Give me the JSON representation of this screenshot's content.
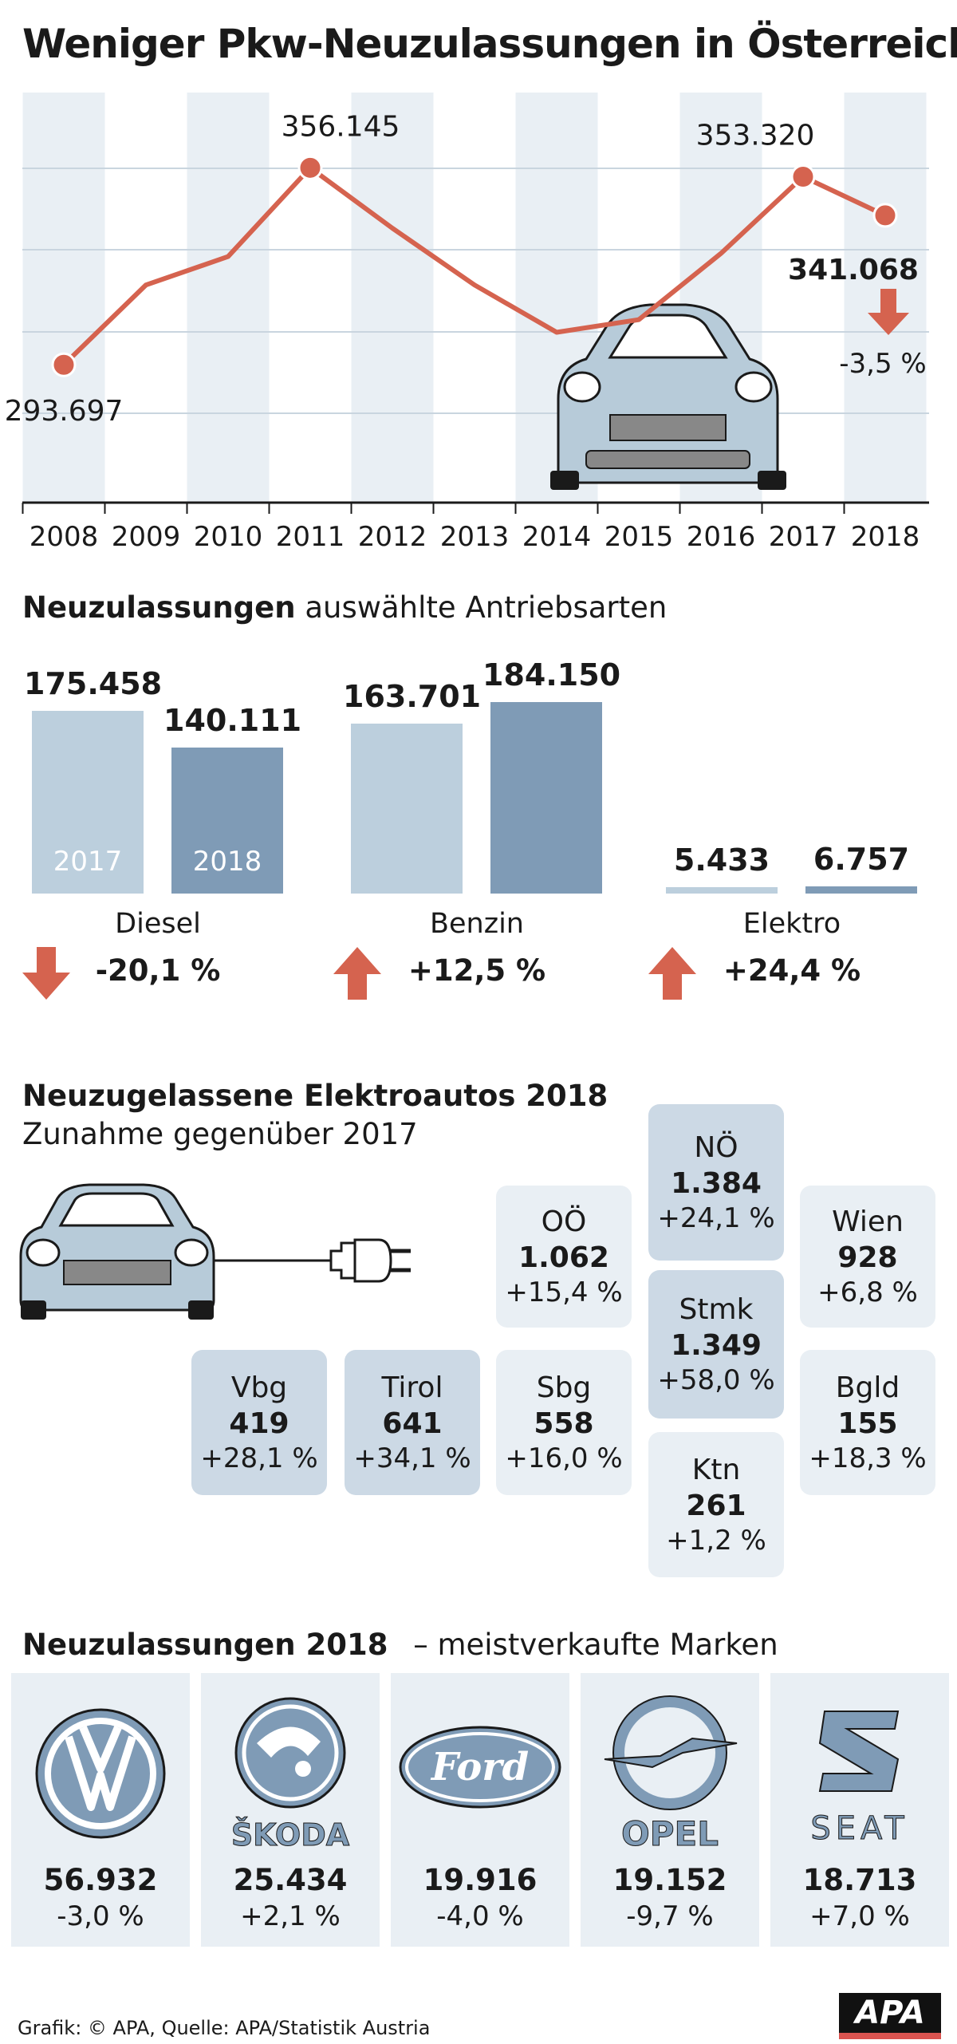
{
  "title": "Weniger Pkw-Neuzulassungen in Österreich",
  "colors": {
    "line": "#d5634f",
    "light_bar": "#bccfdd",
    "dark_bar": "#7f9bb6",
    "stripe": "#e9eff4",
    "arrow": "#d5634f",
    "tile_light": "#e9eff4",
    "tile_dark": "#ccd9e5",
    "car": "#b7cbd9",
    "grille": "#888888"
  },
  "chart_data": [
    {
      "type": "line",
      "title": "Weniger Pkw-Neuzulassungen in Österreich",
      "x": [
        "2008",
        "2009",
        "2010",
        "2011",
        "2012",
        "2013",
        "2014",
        "2015",
        "2016",
        "2017",
        "2018"
      ],
      "series": [
        {
          "values": [
            293697,
            319000,
            328000,
            356145,
            337000,
            319000,
            304000,
            308000,
            329000,
            353320,
            341068
          ]
        }
      ],
      "labeled_points": [
        {
          "x": "2008",
          "label": "293.697"
        },
        {
          "x": "2011",
          "label": "356.145"
        },
        {
          "x": "2017",
          "label": "353.320"
        },
        {
          "x": "2018",
          "label": "341.068"
        }
      ],
      "change": "-3,5 %",
      "grid": true
    },
    {
      "type": "bar",
      "title": "Neuzulassungen",
      "subtitle": "auswählte Antriebsarten",
      "categories": [
        "Diesel",
        "Benzin",
        "Elektro"
      ],
      "series": [
        {
          "name": "2017",
          "values": [
            175458,
            163701,
            5433
          ],
          "labels": [
            "175.458",
            "163.701",
            "5.433"
          ]
        },
        {
          "name": "2018",
          "values": [
            140111,
            184150,
            6757
          ],
          "labels": [
            "140.111",
            "184.150",
            "6.757"
          ]
        }
      ],
      "changes": [
        {
          "category": "Diesel",
          "pct": "-20,1 %",
          "direction": "down"
        },
        {
          "category": "Benzin",
          "pct": "+12,5 %",
          "direction": "up"
        },
        {
          "category": "Elektro",
          "pct": "+24,4 %",
          "direction": "up"
        }
      ]
    },
    {
      "type": "table",
      "title": "Neuzugelassene Elektroautos 2018",
      "subtitle": "Zunahme gegenüber 2017",
      "regions": [
        {
          "name": "NÖ",
          "value": "1.384",
          "pct": "+24,1 %",
          "highlight": true
        },
        {
          "name": "OÖ",
          "value": "1.062",
          "pct": "+15,4 %",
          "highlight": false
        },
        {
          "name": "Wien",
          "value": "928",
          "pct": "+6,8 %",
          "highlight": false
        },
        {
          "name": "Stmk",
          "value": "1.349",
          "pct": "+58,0 %",
          "highlight": true
        },
        {
          "name": "Vbg",
          "value": "419",
          "pct": "+28,1 %",
          "highlight": true
        },
        {
          "name": "Tirol",
          "value": "641",
          "pct": "+34,1 %",
          "highlight": true
        },
        {
          "name": "Sbg",
          "value": "558",
          "pct": "+16,0 %",
          "highlight": false
        },
        {
          "name": "Bgld",
          "value": "155",
          "pct": "+18,3 %",
          "highlight": false
        },
        {
          "name": "Ktn",
          "value": "261",
          "pct": "+1,2 %",
          "highlight": false
        }
      ]
    },
    {
      "type": "table",
      "title": "Neuzulassungen 2018",
      "subtitle": "– meistverkaufte Marken",
      "brands": [
        {
          "logo": "vw-logo",
          "value": "56.932",
          "pct": "-3,0 %"
        },
        {
          "logo": "skoda-logo",
          "wordmark": "ŠKODA",
          "value": "25.434",
          "pct": "+2,1 %"
        },
        {
          "logo": "ford-logo",
          "wordmark": "Ford",
          "value": "19.916",
          "pct": "-4,0 %"
        },
        {
          "logo": "opel-logo",
          "wordmark": "OPEL",
          "value": "19.152",
          "pct": "-9,7 %"
        },
        {
          "logo": "seat-logo",
          "wordmark": "SEAT",
          "value": "18.713",
          "pct": "+7,0 %"
        }
      ]
    }
  ],
  "footer": "Grafik: © APA, Quelle: APA/Statistik Austria",
  "apa_logo": "APA"
}
